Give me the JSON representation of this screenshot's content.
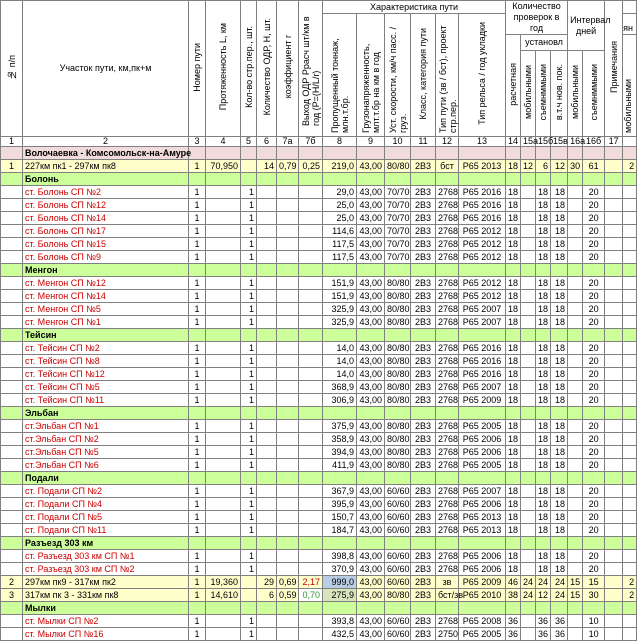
{
  "headers": {
    "c1": "№ п/п",
    "c2": "Участок пути, км,пк+м",
    "c3": "Номер пути",
    "c4": "Протяженность L, км",
    "c5": "Кол-во стр.пер., шт.",
    "c6": "Количество ОДР, Н, шт.",
    "c7a": "коэффициент r",
    "c7b": "Выход ОДР Ррасч шт/км в год (Р=(Н/L/r)",
    "group_char": "Характеристика пути",
    "c8": "Пропущенный тоннаж, млн.т.бр.",
    "c9": "Грузонапряженность, млт.т.бр на км в год",
    "c10": "Уст. скорости, км/ч пасс. / груз.",
    "c11": "Класс, категория пути",
    "c12": "Тип пути (зв / бст), проект стр.пер.",
    "c13": "Тип рельса / год укладки",
    "group_checks": "Количество проверок в год",
    "c14": "расчетная",
    "group_set": "установл",
    "c15a": "мобильными",
    "c15b": "съемнммыми",
    "c15v": "в.т.ч нов. пок.",
    "group_interval": "Интервал дней",
    "c16a": "мобильными",
    "c16b": "съемнммыми",
    "c17": "Примечания",
    "c18top": "ян",
    "c18": "мобильными"
  },
  "col_numbers": [
    "1",
    "2",
    "3",
    "4",
    "5",
    "6",
    "7а",
    "7б",
    "8",
    "9",
    "10",
    "11",
    "12",
    "13",
    "14",
    "15а",
    "15б",
    "15в",
    "16а",
    "16б",
    "17",
    ""
  ],
  "rows": [
    {
      "type": "region",
      "name": "Волочаевка - Комсомольск-на-Амуре"
    },
    {
      "type": "main",
      "cells": [
        "1",
        "227км пк1 - 297км пк8",
        "1",
        "70,950",
        "",
        "14",
        "0,79",
        "0,25",
        "219,0",
        "43,00",
        "80/80",
        "2В3",
        "бст",
        "Р65  2013",
        "18",
        "12",
        "6",
        "12",
        "30",
        "61",
        "",
        "2"
      ]
    },
    {
      "type": "station",
      "name": "Болонь"
    },
    {
      "type": "sub",
      "name": "ст. Болонь СП №2",
      "t": "29,0",
      "s": "70/70",
      "y": "Р65  2016",
      "k": "18",
      "i": "20"
    },
    {
      "type": "sub",
      "name": "ст. Болонь СП №12",
      "t": "25,0",
      "s": "70/70",
      "y": "Р65  2016",
      "k": "18",
      "i": "20"
    },
    {
      "type": "sub",
      "name": "ст. Болонь СП №14",
      "t": "25,0",
      "s": "70/70",
      "y": "Р65  2016",
      "k": "18",
      "i": "20"
    },
    {
      "type": "sub",
      "name": "ст. Болонь СП №17",
      "t": "114,6",
      "s": "70/70",
      "y": "Р65  2012",
      "k": "18",
      "i": "20"
    },
    {
      "type": "sub",
      "name": "ст. Болонь СП №15",
      "t": "117,5",
      "s": "70/70",
      "y": "Р65  2012",
      "k": "18",
      "i": "20"
    },
    {
      "type": "sub",
      "name": "ст. Болонь СП №9",
      "t": "117,5",
      "s": "70/70",
      "y": "Р65  2012",
      "k": "18",
      "i": "20"
    },
    {
      "type": "station",
      "name": "Менгон"
    },
    {
      "type": "sub",
      "name": "ст. Менгон СП №12",
      "t": "151,9",
      "s": "80/80",
      "y": "Р65  2012",
      "k": "18",
      "i": "20"
    },
    {
      "type": "sub",
      "name": "ст. Менгон СП №14",
      "t": "151,9",
      "s": "80/80",
      "y": "Р65  2012",
      "k": "18",
      "i": "20"
    },
    {
      "type": "sub",
      "name": "ст. Менгон СП №5",
      "t": "325,9",
      "s": "80/80",
      "y": "Р65  2007",
      "k": "18",
      "i": "20"
    },
    {
      "type": "sub",
      "name": "ст. Менгон СП №1",
      "t": "325,9",
      "s": "80/80",
      "y": "Р65  2007",
      "k": "18",
      "i": "20"
    },
    {
      "type": "station",
      "name": "Тейсин"
    },
    {
      "type": "sub",
      "name": "ст. Тейсин СП №2",
      "t": "14,0",
      "s": "80/80",
      "y": "Р65  2016",
      "k": "18",
      "i": "20"
    },
    {
      "type": "sub",
      "name": "ст. Тейсин СП №8",
      "t": "14,0",
      "s": "80/80",
      "y": "Р65  2016",
      "k": "18",
      "i": "20"
    },
    {
      "type": "sub",
      "name": "ст. Тейсин СП №12",
      "t": "14,0",
      "s": "80/80",
      "y": "Р65  2016",
      "k": "18",
      "i": "20"
    },
    {
      "type": "sub",
      "name": "ст. Тейсин СП №5",
      "t": "368,9",
      "s": "80/80",
      "y": "Р65  2007",
      "k": "18",
      "i": "20"
    },
    {
      "type": "sub",
      "name": "ст. Тейсин СП №11",
      "t": "306,9",
      "s": "80/80",
      "y": "Р65  2009",
      "k": "18",
      "i": "20"
    },
    {
      "type": "station",
      "name": "Эльбан"
    },
    {
      "type": "sub",
      "name": "ст.Эльбан СП №1",
      "t": "375,9",
      "s": "80/80",
      "y": "Р65  2005",
      "k": "18",
      "i": "20"
    },
    {
      "type": "sub",
      "name": "ст.Эльбан СП №2",
      "t": "358,9",
      "s": "80/80",
      "y": "Р65  2006",
      "k": "18",
      "i": "20"
    },
    {
      "type": "sub",
      "name": "ст.Эльбан СП №5",
      "t": "394,9",
      "s": "80/80",
      "y": "Р65  2006",
      "k": "18",
      "i": "20"
    },
    {
      "type": "sub",
      "name": "ст.Эльбан СП №6",
      "t": "411,9",
      "s": "80/80",
      "y": "Р65  2005",
      "k": "18",
      "i": "20"
    },
    {
      "type": "station",
      "name": "Подали"
    },
    {
      "type": "sub",
      "name": "ст. Подали СП №2",
      "t": "367,9",
      "s": "60/60",
      "y": "Р65  2007",
      "k": "18",
      "i": "20"
    },
    {
      "type": "sub",
      "name": "ст. Подали СП №4",
      "t": "395,9",
      "s": "60/60",
      "y": "Р65  2006",
      "k": "18",
      "i": "20"
    },
    {
      "type": "sub",
      "name": "ст. Подали СП №5",
      "t": "150,7",
      "s": "60/60",
      "y": "Р65  2013",
      "k": "18",
      "i": "20"
    },
    {
      "type": "sub",
      "name": "ст. Подали СП №11",
      "t": "184,7",
      "s": "60/60",
      "y": "Р65  2013",
      "k": "18",
      "i": "20"
    },
    {
      "type": "station",
      "name": "Разъезд 303 км"
    },
    {
      "type": "sub",
      "name": "ст. Разъезд 303 км СП №1",
      "t": "398,8",
      "s": "60/60",
      "y": "Р65  2006",
      "k": "18",
      "i": "20"
    },
    {
      "type": "sub",
      "name": "ст. Разъезд 303 км СП №2",
      "t": "370,9",
      "s": "60/60",
      "y": "Р65  2006",
      "k": "18",
      "i": "20"
    },
    {
      "type": "main",
      "cells": [
        "2",
        "297км пк9 - 317км пк2",
        "1",
        "19,360",
        "",
        "29",
        "0,69",
        "2,17",
        "999,0",
        "43,00",
        "60/60",
        "2В3",
        "зв",
        "Р65  2009",
        "46",
        "24",
        "24",
        "24",
        "15",
        "15",
        "",
        "2"
      ],
      "flags": {
        "7": "nred",
        "8": "blue"
      }
    },
    {
      "type": "main",
      "cells": [
        "3",
        "317км пк 3 - 331км пк8",
        "1",
        "14,610",
        "",
        "6",
        "0,59",
        "0,70",
        "275,9",
        "43,00",
        "80/80",
        "2В3",
        "бст/зв",
        "Р65  2010",
        "38",
        "24",
        "12",
        "24",
        "15",
        "30",
        "",
        "2"
      ],
      "flags": {
        "7": "ngreen",
        "8": "pale"
      }
    },
    {
      "type": "station",
      "name": "Мылки"
    },
    {
      "type": "sub",
      "name": "ст. Мылки СП №2",
      "t": "393,8",
      "s": "60/60",
      "y": "Р65  2008",
      "k": "36",
      "i": "10"
    },
    {
      "type": "sub",
      "name": "ст. Мылки СП №16",
      "t": "432,5",
      "s": "60/60",
      "p": "2750",
      "y": "Р65  2005",
      "k": "36",
      "i": "10"
    }
  ],
  "sub_defaults": {
    "track": "1",
    "switches": "1",
    "load": "43,00",
    "cls": "2В3",
    "proj": "2768"
  }
}
